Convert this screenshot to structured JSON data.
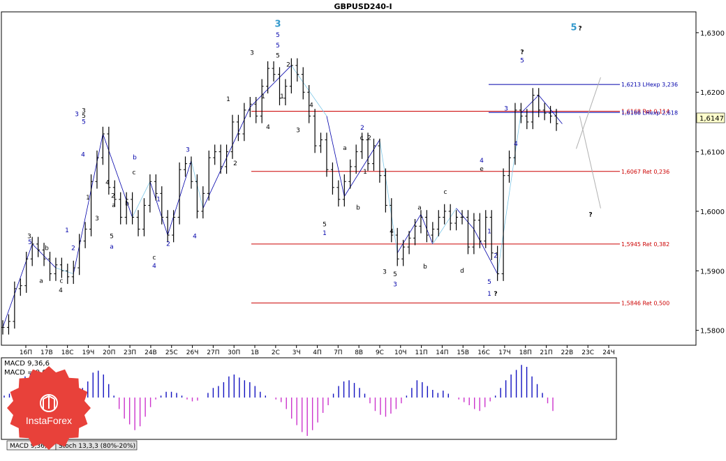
{
  "chart_data": [
    {
      "type": "ohlc",
      "title": "GBPUSD240-I",
      "ylim": [
        1.5775,
        1.6335
      ],
      "current_price": "1,6147",
      "y_ticks": [
        "1,6300",
        "1,6200",
        "1,6100",
        "1,6000",
        "1,5900",
        "1,5800"
      ],
      "y_tick_values": [
        1.63,
        1.62,
        1.61,
        1.6,
        1.59,
        1.58
      ],
      "x_labels": [
        "16П",
        "17В",
        "18С",
        "19Ч",
        "20П",
        "23П",
        "24В",
        "25С",
        "26Ч",
        "27П",
        "30П",
        "1В",
        "2С",
        "3Ч",
        "4П",
        "7П",
        "8В",
        "9С",
        "10Ч",
        "11П",
        "14П",
        "15В",
        "16С",
        "17Ч",
        "18П",
        "21П",
        "22В",
        "23С",
        "24Ч"
      ],
      "series": [
        {
          "values": [
            1.5805,
            1.5815,
            1.587,
            1.5875,
            1.592,
            1.5945,
            1.5935,
            1.592,
            1.5895,
            1.591,
            1.59,
            1.589,
            1.5905,
            1.595,
            1.597,
            1.605,
            1.609,
            1.613,
            1.604,
            1.602,
            1.599,
            1.602,
            1.599,
            1.597,
            1.601,
            1.605,
            1.603,
            1.599,
            1.596,
            1.599,
            1.607,
            1.608,
            1.605,
            1.6,
            1.603,
            1.609,
            1.61,
            1.6075,
            1.61,
            1.615,
            1.613,
            1.617,
            1.618,
            1.616,
            1.621,
            1.624,
            1.623,
            1.619,
            1.621,
            1.6245,
            1.623,
            1.62,
            1.616,
            1.611,
            1.612,
            1.607,
            1.604,
            1.602,
            1.605,
            1.6075,
            1.61,
            1.612,
            1.608,
            1.611,
            1.606,
            1.601,
            1.596,
            1.592,
            1.594,
            1.5955,
            1.5975,
            1.599,
            1.596,
            1.597,
            1.599,
            1.6,
            1.598,
            1.599,
            1.599,
            1.594,
            1.5985,
            1.595,
            1.599,
            1.593,
            1.5895,
            1.606,
            1.609,
            1.617,
            1.616,
            1.615,
            1.6195,
            1.617,
            1.6165,
            1.616,
            1.6147
          ],
          "waypoints": [
            [
              0,
              1.5805
            ],
            [
              5,
              1.5945
            ],
            [
              9,
              1.5905
            ],
            [
              12,
              1.5895
            ],
            [
              17,
              1.613
            ],
            [
              22,
              1.599
            ],
            [
              25,
              1.605
            ],
            [
              28,
              1.596
            ],
            [
              32,
              1.6085
            ],
            [
              34,
              1.6005
            ],
            [
              42,
              1.6175
            ],
            [
              49,
              1.6245
            ],
            [
              55,
              1.616
            ],
            [
              58,
              1.6025
            ],
            [
              64,
              1.612
            ],
            [
              67,
              1.593
            ],
            [
              71,
              1.5995
            ],
            [
              73,
              1.5945
            ],
            [
              77,
              1.6005
            ],
            [
              80,
              1.597
            ],
            [
              84,
              1.5895
            ],
            [
              88,
              1.6165
            ],
            [
              91,
              1.6195
            ],
            [
              95,
              1.6147
            ]
          ]
        }
      ],
      "fibonacci": [
        {
          "price": 1.6213,
          "label": "1,6213 LHexp 3,236",
          "color": "#0000aa"
        },
        {
          "price": 1.6168,
          "label": "1,6168 Ret 0,114",
          "color": "#cc0000"
        },
        {
          "price": 1.6166,
          "label": "1,6166 LHexp 2,618",
          "color": "#0000aa"
        },
        {
          "price": 1.6067,
          "label": "1,6067 Ret 0,236",
          "color": "#cc0000"
        },
        {
          "price": 1.5945,
          "label": "1,5945 Ret 0,382",
          "color": "#cc0000"
        },
        {
          "price": 1.5846,
          "label": "1,5846 Ret 0,500",
          "color": "#cc0000"
        }
      ],
      "wave_labels": [
        {
          "text": "3",
          "x": 42,
          "p": 1.5955,
          "color": "#000000"
        },
        {
          "text": "5",
          "x": 43,
          "p": 1.5945,
          "color": "#0000aa"
        },
        {
          "text": "b",
          "x": 67,
          "p": 1.5935,
          "color": "#000000"
        },
        {
          "text": "a",
          "x": 59,
          "p": 1.588,
          "color": "#000000"
        },
        {
          "text": "c",
          "x": 88,
          "p": 1.588,
          "color": "#000000"
        },
        {
          "text": "4",
          "x": 87,
          "p": 1.5864,
          "color": "#000000"
        },
        {
          "text": "1",
          "x": 96,
          "p": 1.5965,
          "color": "#0000aa"
        },
        {
          "text": "2",
          "x": 105,
          "p": 1.5935,
          "color": "#0000aa"
        },
        {
          "text": "3",
          "x": 110,
          "p": 1.616,
          "color": "#0000aa"
        },
        {
          "text": "3",
          "x": 120,
          "p": 1.6166,
          "color": "#000000"
        },
        {
          "text": "5",
          "x": 120,
          "p": 1.6157,
          "color": "#000000"
        },
        {
          "text": "5",
          "x": 120,
          "p": 1.6147,
          "color": "#0000aa"
        },
        {
          "text": "4",
          "x": 119,
          "p": 1.6092,
          "color": "#0000aa"
        },
        {
          "text": "4",
          "x": 154,
          "p": 1.6045,
          "color": "#000000"
        },
        {
          "text": "1",
          "x": 126,
          "p": 1.602,
          "color": "#000000"
        },
        {
          "text": "3",
          "x": 139,
          "p": 1.5985,
          "color": "#000000"
        },
        {
          "text": "2",
          "x": 162,
          "p": 1.6023,
          "color": "#000000"
        },
        {
          "text": "a",
          "x": 163,
          "p": 1.6007,
          "color": "#000000"
        },
        {
          "text": "b",
          "x": 182,
          "p": 1.601,
          "color": "#000000"
        },
        {
          "text": "5",
          "x": 160,
          "p": 1.5955,
          "color": "#000000"
        },
        {
          "text": "a",
          "x": 160,
          "p": 1.5937,
          "color": "#0000aa"
        },
        {
          "text": "b",
          "x": 193,
          "p": 1.6087,
          "color": "#0000aa"
        },
        {
          "text": "c",
          "x": 192,
          "p": 1.6062,
          "color": "#000000"
        },
        {
          "text": "1",
          "x": 227,
          "p": 1.6017,
          "color": "#0000aa"
        },
        {
          "text": "c",
          "x": 221,
          "p": 1.5919,
          "color": "#000000"
        },
        {
          "text": "4",
          "x": 221,
          "p": 1.5905,
          "color": "#0000aa"
        },
        {
          "text": "2",
          "x": 241,
          "p": 1.5942,
          "color": "#0000aa"
        },
        {
          "text": "3",
          "x": 269,
          "p": 1.61,
          "color": "#0000aa"
        },
        {
          "text": "4",
          "x": 279,
          "p": 1.5955,
          "color": "#0000aa"
        },
        {
          "text": "1",
          "x": 327,
          "p": 1.6185,
          "color": "#000000"
        },
        {
          "text": "2",
          "x": 337,
          "p": 1.6077,
          "color": "#000000"
        },
        {
          "text": "3",
          "x": 361,
          "p": 1.6263,
          "color": "#000000"
        },
        {
          "text": "3",
          "x": 398,
          "p": 1.631,
          "color": "#3399cc"
        },
        {
          "text": "5",
          "x": 398,
          "p": 1.6293,
          "color": "#0000aa"
        },
        {
          "text": "5",
          "x": 398,
          "p": 1.6275,
          "color": "#0000aa"
        },
        {
          "text": "5",
          "x": 398,
          "p": 1.6258,
          "color": "#000000"
        },
        {
          "text": "2",
          "x": 413,
          "p": 1.6243,
          "color": "#000000"
        },
        {
          "text": "1",
          "x": 404,
          "p": 1.619,
          "color": "#000000"
        },
        {
          "text": "1",
          "x": 377,
          "p": 1.619,
          "color": "#000000"
        },
        {
          "text": "4",
          "x": 384,
          "p": 1.6138,
          "color": "#000000"
        },
        {
          "text": "4",
          "x": 446,
          "p": 1.6175,
          "color": "#000000"
        },
        {
          "text": "3",
          "x": 427,
          "p": 1.6133,
          "color": "#000000"
        },
        {
          "text": "5",
          "x": 465,
          "p": 1.5975,
          "color": "#000000"
        },
        {
          "text": "1",
          "x": 465,
          "p": 1.596,
          "color": "#0000aa"
        },
        {
          "text": "a",
          "x": 494,
          "p": 1.6103,
          "color": "#000000"
        },
        {
          "text": "2",
          "x": 519,
          "p": 1.6137,
          "color": "#0000aa"
        },
        {
          "text": "c",
          "x": 518,
          "p": 1.612,
          "color": "#000000"
        },
        {
          "text": "2",
          "x": 529,
          "p": 1.612,
          "color": "#000000"
        },
        {
          "text": "1",
          "x": 523,
          "p": 1.6063,
          "color": "#000000"
        },
        {
          "text": "b",
          "x": 513,
          "p": 1.6003,
          "color": "#000000"
        },
        {
          "text": "4",
          "x": 561,
          "p": 1.5963,
          "color": "#000000"
        },
        {
          "text": "3",
          "x": 551,
          "p": 1.5895,
          "color": "#000000"
        },
        {
          "text": "5",
          "x": 566,
          "p": 1.5891,
          "color": "#000000"
        },
        {
          "text": "3",
          "x": 566,
          "p": 1.5874,
          "color": "#0000aa"
        },
        {
          "text": "a",
          "x": 601,
          "p": 1.6003,
          "color": "#000000"
        },
        {
          "text": "b",
          "x": 609,
          "p": 1.5904,
          "color": "#000000"
        },
        {
          "text": "c",
          "x": 638,
          "p": 1.6029,
          "color": "#000000"
        },
        {
          "text": "d",
          "x": 662,
          "p": 1.5897,
          "color": "#000000"
        },
        {
          "text": "e",
          "x": 690,
          "p": 1.6068,
          "color": "#000000"
        },
        {
          "text": "4",
          "x": 690,
          "p": 1.6082,
          "color": "#0000aa"
        },
        {
          "text": "1",
          "x": 701,
          "p": 1.5963,
          "color": "#0000aa"
        },
        {
          "text": "2",
          "x": 710,
          "p": 1.5922,
          "color": "#0000aa"
        },
        {
          "text": "5",
          "x": 701,
          "p": 1.5878,
          "color": "#0000aa"
        },
        {
          "text": "1",
          "x": 701,
          "p": 1.5858,
          "color": "#0000aa"
        },
        {
          "text": "?",
          "x": 710,
          "p": 1.5858,
          "color": "#000000"
        },
        {
          "text": "3",
          "x": 725,
          "p": 1.6169,
          "color": "#0000aa"
        },
        {
          "text": "4",
          "x": 739,
          "p": 1.611,
          "color": "#0000aa"
        },
        {
          "text": "?",
          "x": 748,
          "p": 1.6264,
          "color": "#000000"
        },
        {
          "text": "5",
          "x": 748,
          "p": 1.625,
          "color": "#0000aa"
        },
        {
          "text": "5",
          "x": 822,
          "p": 1.6304,
          "color": "#3399cc"
        },
        {
          "text": "?",
          "x": 831,
          "p": 1.6304,
          "color": "#000000"
        },
        {
          "text": "?",
          "x": 846,
          "p": 1.5991,
          "color": "#000000"
        }
      ]
    },
    {
      "type": "histogram",
      "title": "MACD 9,36,6",
      "subtitle": "MACD = 0,00",
      "ylim": [
        -1,
        1
      ],
      "values": [
        0.05,
        0.1,
        0.2,
        0.4,
        0.55,
        0.62,
        0.5,
        0.25,
        -0.12,
        -0.22,
        -0.3,
        -0.25,
        -0.12,
        -0.05,
        0.08,
        0.25,
        0.42,
        0.65,
        0.7,
        0.6,
        0.35,
        0.05,
        -0.3,
        -0.55,
        -0.7,
        -0.85,
        -0.75,
        -0.5,
        -0.25,
        -0.05,
        0.05,
        0.15,
        0.15,
        0.12,
        0.05,
        -0.05,
        -0.1,
        -0.08,
        0.0,
        0.12,
        0.25,
        0.3,
        0.4,
        0.55,
        0.6,
        0.52,
        0.45,
        0.4,
        0.3,
        0.15,
        0.05,
        0.0,
        -0.05,
        -0.12,
        -0.3,
        -0.55,
        -0.72,
        -0.9,
        -1.0,
        -0.85,
        -0.65,
        -0.4,
        -0.2,
        0.1,
        0.3,
        0.42,
        0.45,
        0.38,
        0.25,
        0.1,
        -0.15,
        -0.35,
        -0.45,
        -0.5,
        -0.42,
        -0.3,
        -0.15,
        0.05,
        0.25,
        0.45,
        0.4,
        0.3,
        0.2,
        0.12,
        0.18,
        0.1,
        0.0,
        -0.05,
        -0.12,
        -0.2,
        -0.3,
        -0.35,
        -0.25,
        -0.1,
        0.05,
        0.25,
        0.45,
        0.6,
        0.72,
        0.85,
        0.8,
        0.55,
        0.35,
        0.12,
        -0.15,
        -0.35
      ],
      "tabs": [
        "MACD 9,36,6",
        "Stoch 13,3,3 (80%-20%)"
      ]
    }
  ],
  "brand": {
    "name": "InstaForex",
    "badge_color": "#e8413a"
  },
  "colors": {
    "bars": "#000000",
    "macd_positive": "#1010c0",
    "macd_negative": "#cc33cc",
    "trend_lines": "#0000aa",
    "light_lines": "#7fc8e8",
    "projection": "#b0b0b0",
    "fib_red": "#cc0000",
    "fib_blue": "#0000aa"
  }
}
